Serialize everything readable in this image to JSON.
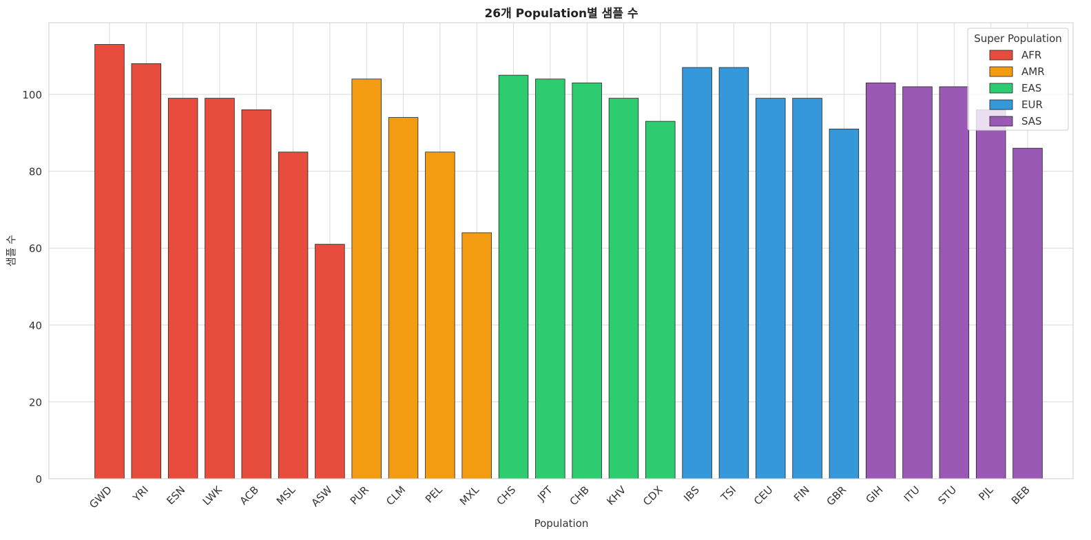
{
  "chart_data": {
    "type": "bar",
    "title": "26개 Population별 샘플 수",
    "xlabel": "Population",
    "ylabel": "샘플 수",
    "ylim": [
      0,
      118.65
    ],
    "yticks": [
      0,
      20,
      40,
      60,
      80,
      100
    ],
    "grid": true,
    "categories": [
      "GWD",
      "YRI",
      "ESN",
      "LWK",
      "ACB",
      "MSL",
      "ASW",
      "PUR",
      "CLM",
      "PEL",
      "MXL",
      "CHS",
      "JPT",
      "CHB",
      "KHV",
      "CDX",
      "IBS",
      "TSI",
      "CEU",
      "FIN",
      "GBR",
      "GIH",
      "ITU",
      "STU",
      "PJL",
      "BEB"
    ],
    "values": [
      113,
      108,
      99,
      99,
      96,
      85,
      61,
      104,
      94,
      85,
      64,
      105,
      104,
      103,
      99,
      93,
      107,
      107,
      99,
      99,
      91,
      103,
      102,
      102,
      96,
      86
    ],
    "groups": [
      "AFR",
      "AFR",
      "AFR",
      "AFR",
      "AFR",
      "AFR",
      "AFR",
      "AMR",
      "AMR",
      "AMR",
      "AMR",
      "EAS",
      "EAS",
      "EAS",
      "EAS",
      "EAS",
      "EUR",
      "EUR",
      "EUR",
      "EUR",
      "EUR",
      "SAS",
      "SAS",
      "SAS",
      "SAS",
      "SAS"
    ],
    "legend": {
      "title": "Super Population",
      "placement": "top-right",
      "entries": [
        {
          "label": "AFR",
          "color": "#e74c3c"
        },
        {
          "label": "AMR",
          "color": "#f39c12"
        },
        {
          "label": "EAS",
          "color": "#2ecc71"
        },
        {
          "label": "EUR",
          "color": "#3498db"
        },
        {
          "label": "SAS",
          "color": "#9b59b6"
        }
      ]
    }
  }
}
